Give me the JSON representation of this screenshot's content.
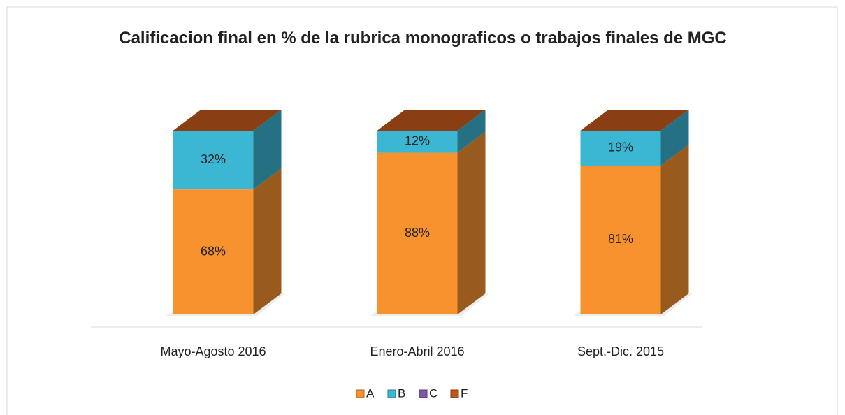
{
  "chart_data": {
    "type": "bar3d_stacked",
    "title": "Calificacion final en % de la rubrica monograficos o trabajos finales de MGC",
    "categories": [
      "Mayo-Agosto 2016",
      "Enero-Abril 2016",
      "Sept.-Dic. 2015"
    ],
    "series": [
      {
        "name": "A",
        "color": "#f7922f",
        "values": [
          68,
          88,
          81
        ],
        "value_labels": [
          "68%",
          "88%",
          "81%"
        ]
      },
      {
        "name": "B",
        "color": "#3bb6d3",
        "values": [
          32,
          12,
          19
        ],
        "value_labels": [
          "32%",
          "12%",
          "19%"
        ]
      },
      {
        "name": "C",
        "color": "#7e57a6",
        "values": [
          0,
          0,
          0
        ]
      },
      {
        "name": "F",
        "color": "#c0561b",
        "values": [
          0,
          0,
          0
        ]
      }
    ],
    "ylim": [
      0,
      100
    ],
    "legend": "bottom"
  }
}
